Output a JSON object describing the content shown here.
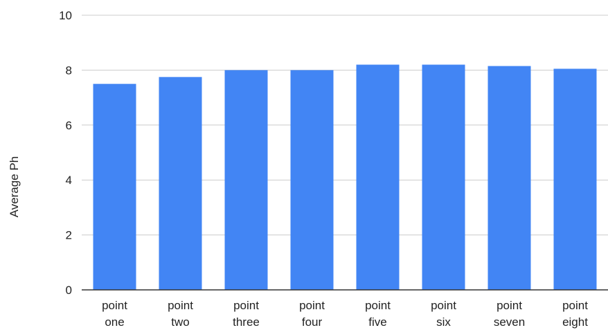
{
  "chart_data": {
    "type": "bar",
    "title": "",
    "xlabel": "",
    "ylabel": "Average Ph",
    "ylim": [
      0,
      10
    ],
    "yticks": [
      0,
      2,
      4,
      6,
      8,
      10
    ],
    "grid": true,
    "legend": "none",
    "categories": [
      [
        "point",
        "one"
      ],
      [
        "point",
        "two"
      ],
      [
        "point",
        "three"
      ],
      [
        "point",
        "four"
      ],
      [
        "point",
        "five"
      ],
      [
        "point",
        "six"
      ],
      [
        "point",
        "seven"
      ],
      [
        "point",
        "eight"
      ]
    ],
    "values": [
      7.5,
      7.75,
      8.0,
      8.0,
      8.2,
      8.2,
      8.15,
      8.05
    ],
    "colors": {
      "bar": "#4285f4",
      "grid": "#cccccc",
      "axis": "#333333",
      "text": "#222222"
    }
  }
}
